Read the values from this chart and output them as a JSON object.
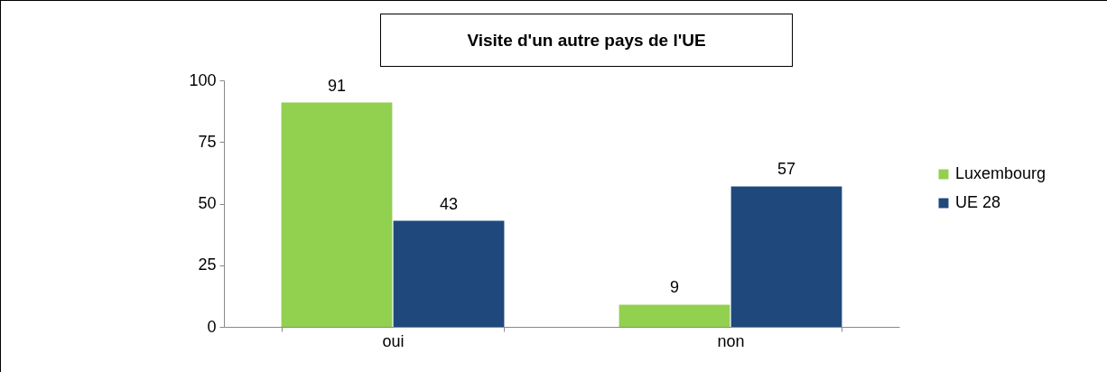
{
  "chart_data": {
    "type": "bar",
    "title": "Visite d'un autre pays de l'UE",
    "categories": [
      "oui",
      "non"
    ],
    "series": [
      {
        "name": "Luxembourg",
        "color": "#92d050",
        "values": [
          91,
          9
        ]
      },
      {
        "name": "UE 28",
        "color": "#1f497d",
        "values": [
          43,
          57
        ]
      }
    ],
    "ylim": [
      0,
      100
    ],
    "yticks": [
      0,
      25,
      50,
      75,
      100
    ],
    "grid": false,
    "legend": "right",
    "data_labels": true
  }
}
